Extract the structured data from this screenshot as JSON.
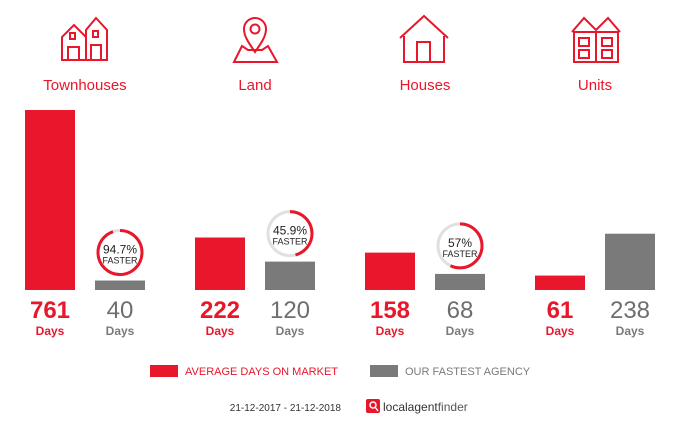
{
  "colors": {
    "primary": "#e8172b",
    "secondary": "#7a7a7a",
    "ring_track": "#e0e0e0"
  },
  "chart_data": {
    "type": "bar",
    "categories": [
      "Townhouses",
      "Land",
      "Houses",
      "Units"
    ],
    "icons": [
      "townhouses-icon",
      "land-pin-icon",
      "house-icon",
      "units-icon"
    ],
    "series": [
      {
        "name": "AVERAGE DAYS ON MARKET",
        "values": [
          761,
          222,
          158,
          61
        ]
      },
      {
        "name": "OUR FASTEST AGENCY",
        "values": [
          40,
          120,
          68,
          238
        ]
      }
    ],
    "value_unit": "Days",
    "faster": [
      {
        "label": "94.7%",
        "value": 94.7
      },
      {
        "label": "45.9%",
        "value": 45.9
      },
      {
        "label": "57%",
        "value": 57
      },
      null
    ],
    "faster_text": "FASTER",
    "ylim": [
      0,
      761
    ],
    "legend_position": "bottom"
  },
  "footer": {
    "date_range": "21-12-2017 - 21-12-2018",
    "brand_part1": "localagent",
    "brand_part2": "finder"
  }
}
